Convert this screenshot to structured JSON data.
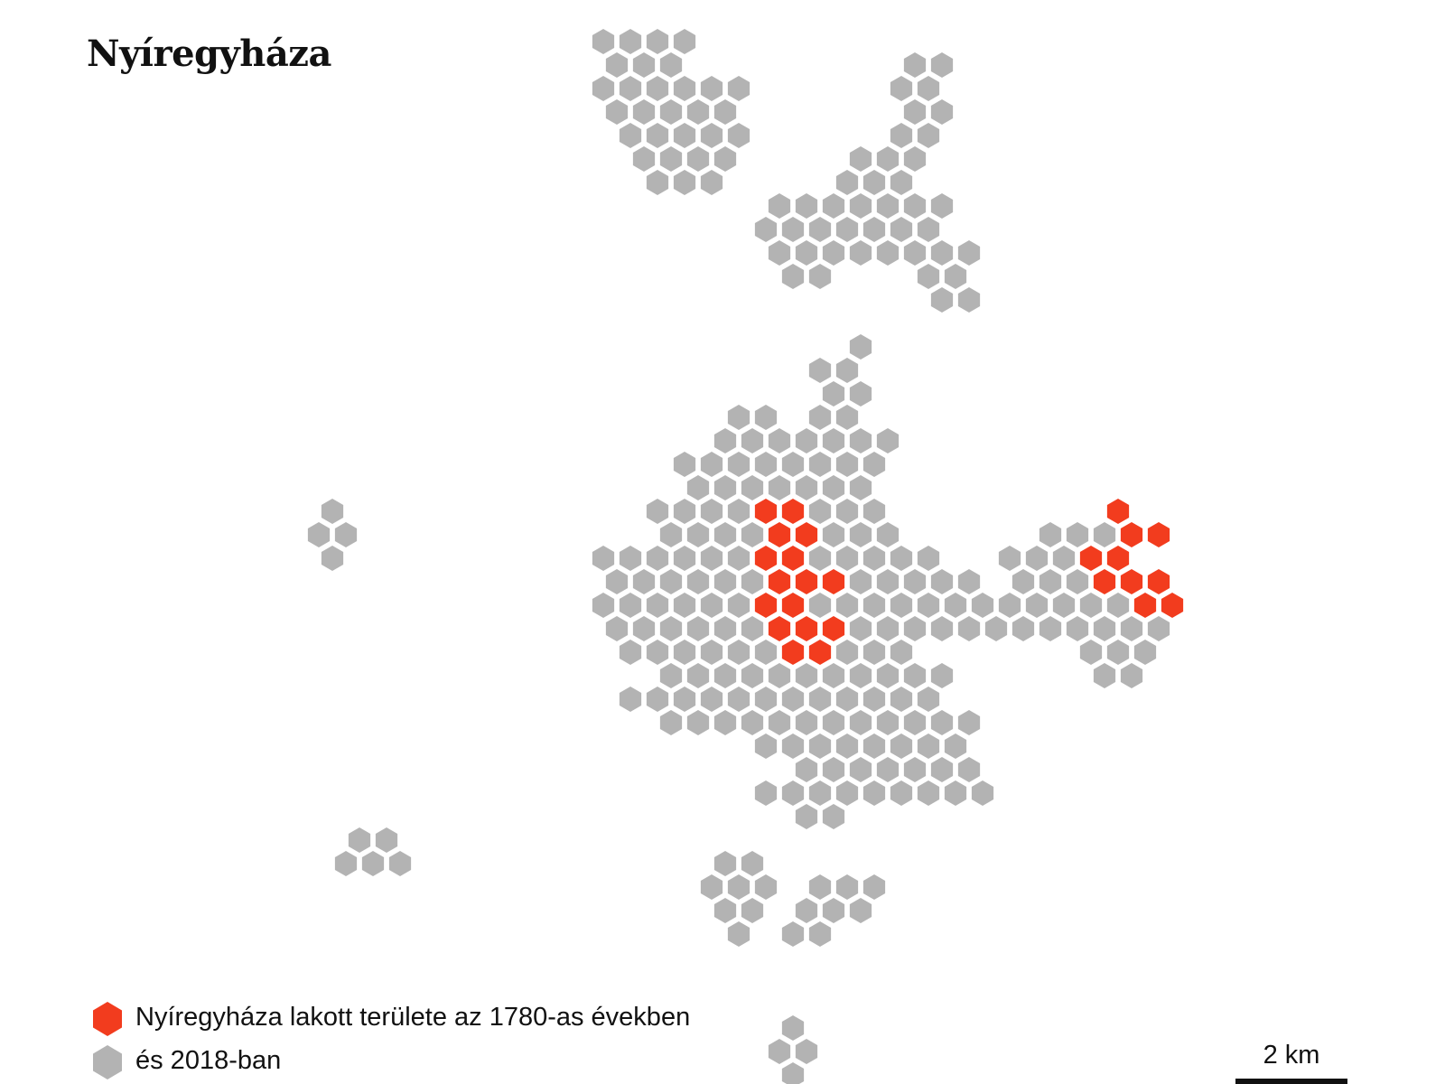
{
  "title": "Nyíregyháza",
  "colors": {
    "historic": "#f23c1e",
    "modern": "#b3b3b3"
  },
  "legend": {
    "historic_label": "Nyíregyháza lakott területe az 1780-as években",
    "modern_label": "és 2018-ban"
  },
  "scale": {
    "label": "2 km"
  }
}
